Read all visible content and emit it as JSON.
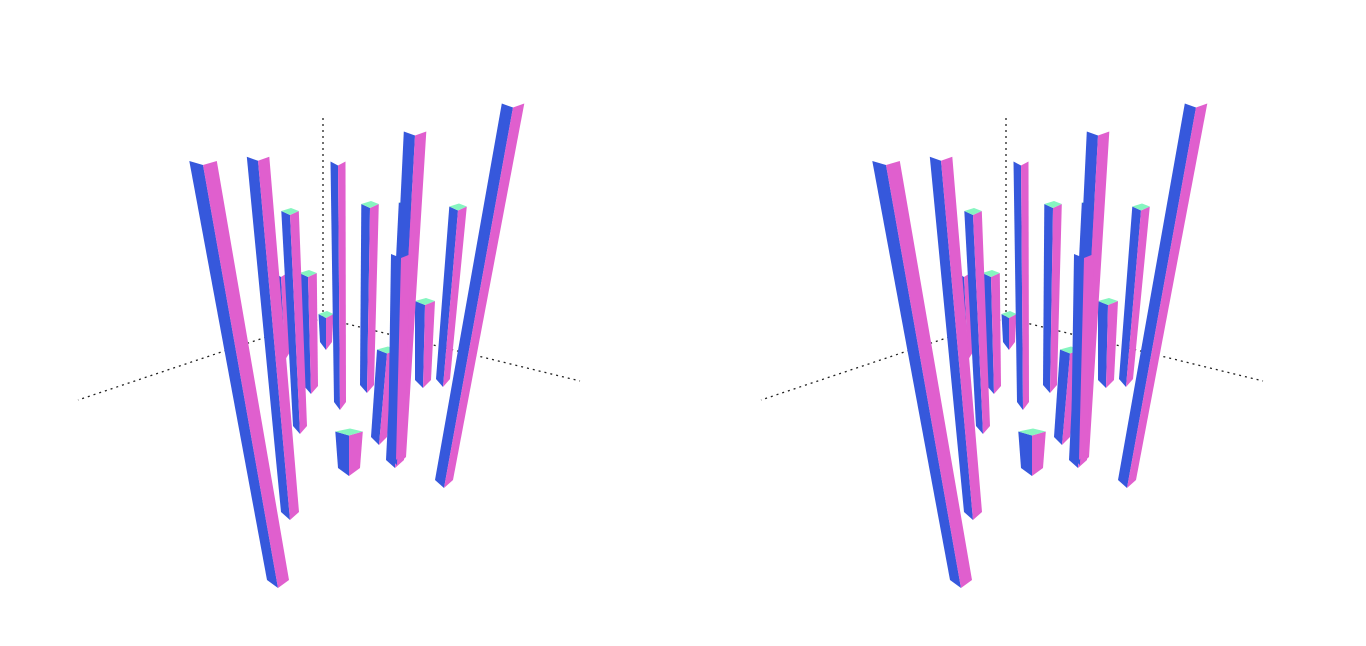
{
  "chart_data": {
    "type": "bar",
    "subtype": "3d-bar-stereo-pair",
    "views": [
      "left",
      "right"
    ],
    "title": "",
    "xlabel": "",
    "ylabel": "",
    "zlabel": "",
    "grid": false,
    "legend": "none",
    "colors": {
      "left_face": "#3658dc",
      "right_face": "#e05fce",
      "top_face": "#86f5c0",
      "axes": "#222222"
    },
    "bars": [
      {
        "id": "b1",
        "value": 0.2
      },
      {
        "id": "b2",
        "value": 0.08
      },
      {
        "id": "b3",
        "value": 0.28
      },
      {
        "id": "b4",
        "value": 0.58
      },
      {
        "id": "b5",
        "value": 0.2
      },
      {
        "id": "b6",
        "value": 0.52
      },
      {
        "id": "b7",
        "value": 0.44
      },
      {
        "id": "b8",
        "value": 0.1
      },
      {
        "id": "b9",
        "value": 0.42
      },
      {
        "id": "b10",
        "value": 0.22
      },
      {
        "id": "b11",
        "value": 1.0
      },
      {
        "id": "b12",
        "value": 0.85
      },
      {
        "id": "b13",
        "value": 0.62
      },
      {
        "id": "b14",
        "value": 0.48
      },
      {
        "id": "b15",
        "value": 0.9
      },
      {
        "id": "b16",
        "value": 0.78
      },
      {
        "id": "b17",
        "value": 0.16
      }
    ]
  }
}
